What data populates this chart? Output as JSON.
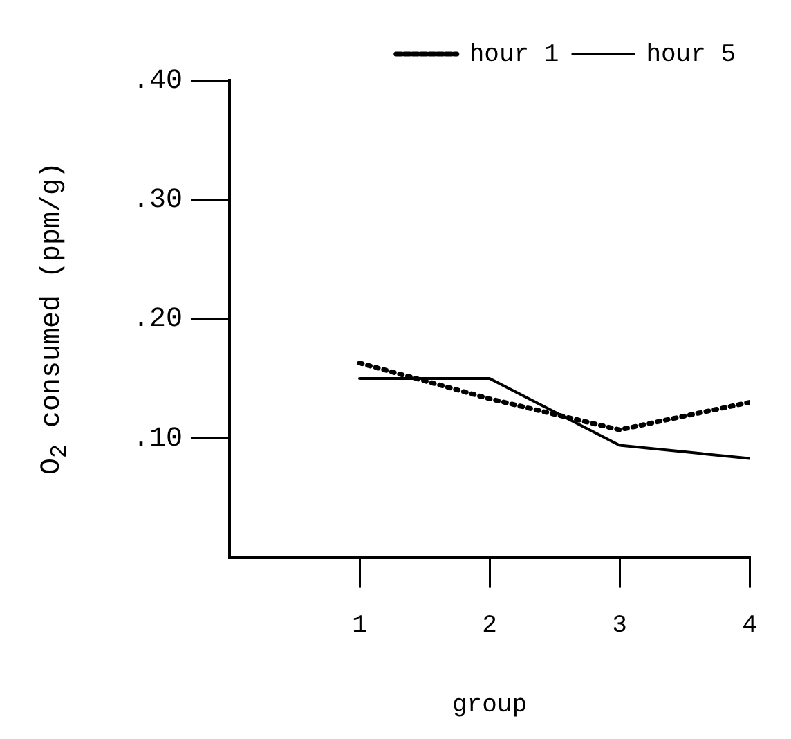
{
  "chart_data": {
    "type": "line",
    "xlabel": "group",
    "ylabel": "O$_{2}$ consumed (ppm/g)",
    "x": [
      1,
      2,
      3,
      4
    ],
    "series": [
      {
        "name": "hour 1",
        "color": "#000000",
        "line_style": "dotted",
        "values": [
          0.163,
          0.133,
          0.107,
          0.13
        ]
      },
      {
        "name": "hour 5",
        "color": "#000000",
        "line_style": "solid",
        "values": [
          0.15,
          0.15,
          0.094,
          0.083
        ]
      }
    ],
    "xlim": [
      0,
      4
    ],
    "xticks": [
      1,
      2,
      3,
      4
    ],
    "ylim": [
      0,
      0.4
    ],
    "yticks": [
      {
        "value": 0.1,
        "label": ".10"
      },
      {
        "value": 0.2,
        "label": ".20"
      },
      {
        "value": 0.3,
        "label": ".30"
      },
      {
        "value": 0.4,
        "label": ".40"
      }
    ],
    "grid": false,
    "legend": "top right",
    "marker": "none"
  }
}
